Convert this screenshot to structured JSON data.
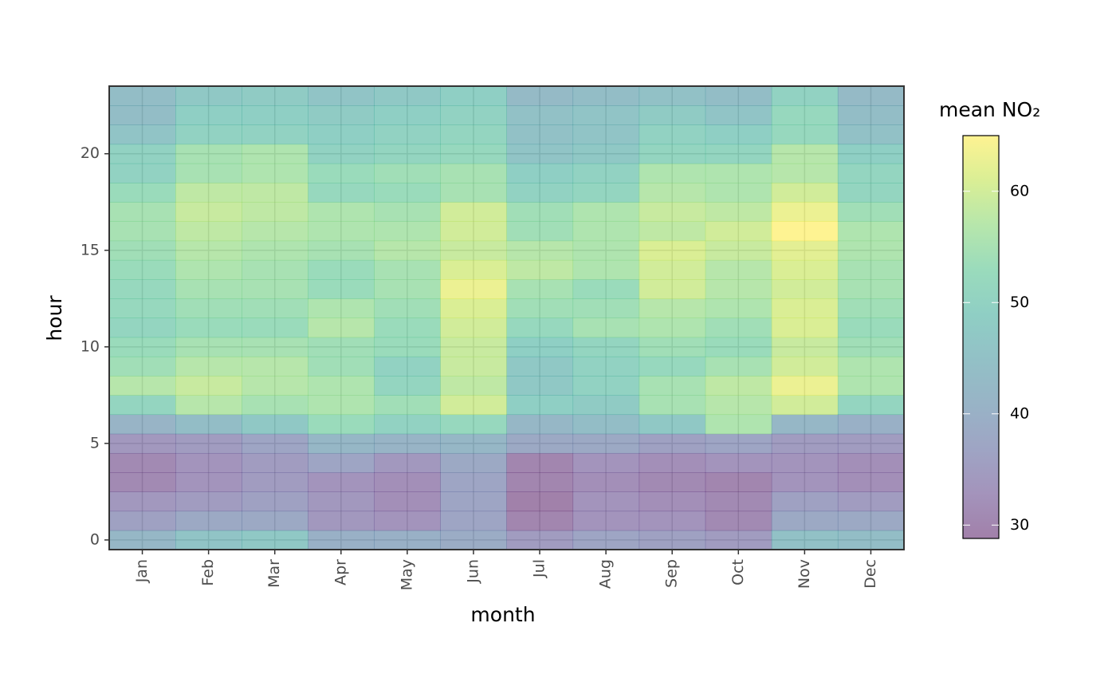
{
  "chart_data": {
    "type": "heatmap",
    "x_label": "month",
    "y_label": "hour",
    "categories": [
      "Jan",
      "Feb",
      "Mar",
      "Apr",
      "May",
      "Jun",
      "Jul",
      "Aug",
      "Sep",
      "Oct",
      "Nov",
      "Dec"
    ],
    "y": [
      0,
      1,
      2,
      3,
      4,
      5,
      6,
      7,
      8,
      9,
      10,
      11,
      12,
      13,
      14,
      15,
      16,
      17,
      18,
      19,
      20,
      21,
      22,
      23
    ],
    "ylim": [
      -0.5,
      23.5
    ],
    "yticks": [
      0,
      5,
      10,
      15,
      20
    ],
    "grid": true,
    "values": [
      [
        42,
        36,
        34,
        31,
        31,
        34,
        41,
        51,
        57,
        54,
        53,
        51,
        52,
        52,
        53,
        54,
        55,
        55,
        53,
        50,
        50,
        46,
        44,
        44
      ],
      [
        46,
        38,
        35,
        33,
        33,
        35,
        44,
        57,
        59,
        57,
        55,
        53,
        54,
        55,
        56,
        57,
        58,
        59,
        58,
        55,
        55,
        50,
        49,
        47
      ],
      [
        47,
        38,
        36,
        35,
        35,
        37,
        47,
        55,
        57,
        57,
        55,
        53,
        54,
        55,
        55,
        56,
        57,
        58,
        58,
        56,
        56,
        50,
        49,
        48
      ],
      [
        40,
        34,
        34,
        33,
        37,
        42,
        53,
        56,
        56,
        54,
        54,
        57,
        56,
        53,
        53,
        55,
        56,
        56,
        52,
        53,
        50,
        49,
        48,
        46
      ],
      [
        40,
        33,
        32,
        32,
        34,
        41,
        50,
        54,
        51,
        50,
        53,
        53,
        54,
        55,
        55,
        57,
        56,
        55,
        53,
        54,
        51,
        50,
        49,
        47
      ],
      [
        39,
        37,
        37,
        37,
        38,
        42,
        52,
        60,
        58,
        59,
        59,
        60,
        61,
        63,
        61,
        59,
        60,
        60,
        55,
        55,
        52,
        51,
        50,
        49
      ],
      [
        35,
        30,
        29,
        30,
        30,
        38,
        42,
        49,
        47,
        47,
        49,
        52,
        54,
        55,
        58,
        57,
        54,
        54,
        50,
        49,
        46,
        45,
        45,
        43
      ],
      [
        37,
        33,
        33,
        32,
        33,
        38,
        44,
        48,
        50,
        50,
        51,
        55,
        54,
        53,
        56,
        56,
        56,
        56,
        51,
        50,
        47,
        46,
        46,
        44
      ],
      [
        36,
        33,
        32,
        31,
        32,
        36,
        47,
        55,
        55,
        52,
        54,
        56,
        57,
        60,
        60,
        61,
        58,
        59,
        57,
        56,
        51,
        50,
        48,
        45
      ],
      [
        35,
        31,
        31,
        30,
        33,
        37,
        56,
        57,
        58,
        55,
        53,
        54,
        56,
        57,
        57,
        59,
        60,
        58,
        56,
        56,
        51,
        49,
        46,
        44
      ],
      [
        45,
        38,
        36,
        33,
        33,
        35,
        42,
        60,
        63,
        60,
        59,
        61,
        61,
        60,
        61,
        62,
        65,
        63,
        60,
        57,
        57,
        52,
        52,
        50
      ],
      [
        44,
        38,
        35,
        32,
        32,
        35,
        40,
        51,
        56,
        56,
        54,
        53,
        54,
        55,
        55,
        56,
        56,
        54,
        51,
        51,
        49,
        45,
        44,
        43
      ]
    ],
    "colorbar": {
      "title": "mean NO₂",
      "lim": [
        28.8,
        65
      ],
      "ticks": [
        30,
        40,
        50,
        60
      ],
      "palette": "viridis",
      "alpha": 0.5
    }
  }
}
